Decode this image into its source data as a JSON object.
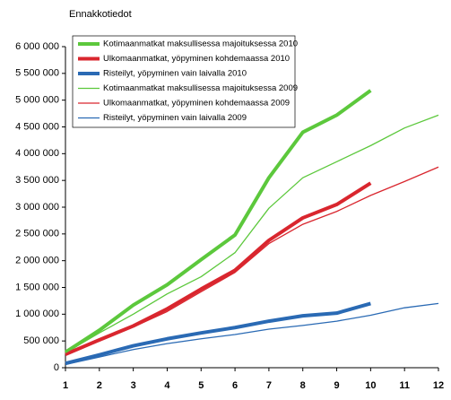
{
  "chart_data": {
    "type": "line",
    "y_label": "Ennakkotiedot",
    "x": [
      1,
      2,
      3,
      4,
      5,
      6,
      7,
      8,
      9,
      10,
      11,
      12
    ],
    "xlim": [
      1,
      12
    ],
    "xticks": [
      1,
      2,
      3,
      4,
      5,
      6,
      7,
      8,
      9,
      10,
      11,
      12
    ],
    "ylim": [
      0,
      6000000
    ],
    "yticks": [
      0,
      {
        "value": 500000,
        "label": "500 000"
      },
      {
        "value": 1000000,
        "label": "1 000 000"
      },
      {
        "value": 1500000,
        "label": "1 500 000"
      },
      {
        "value": 2000000,
        "label": "2 000 000"
      },
      {
        "value": 2500000,
        "label": "2 500 000"
      },
      {
        "value": 3000000,
        "label": "3 000 000"
      },
      {
        "value": 3500000,
        "label": "3 500 000"
      },
      {
        "value": 4000000,
        "label": "4 000 000"
      },
      {
        "value": 4500000,
        "label": "4 500 000"
      },
      {
        "value": 5000000,
        "label": "5 000 000"
      },
      {
        "value": 5500000,
        "label": "5 500 000"
      },
      {
        "value": 6000000,
        "label": "6 000 000"
      }
    ],
    "grid": false,
    "legend": "upper left",
    "series": [
      {
        "name": "Kotimaanmatkat maksullisessa majoituksessa 2010",
        "color": "#5cc83c",
        "line_width": 4,
        "values": [
          290000,
          700000,
          1170000,
          1550000,
          2020000,
          2480000,
          3550000,
          4400000,
          4720000,
          5180000,
          null,
          null
        ]
      },
      {
        "name": "Ulkomaanmatkat, yöpyminen kohdemaassa 2010",
        "color": "#d9262e",
        "line_width": 4,
        "values": [
          250000,
          520000,
          780000,
          1100000,
          1470000,
          1820000,
          2380000,
          2800000,
          3050000,
          3450000,
          null,
          null
        ]
      },
      {
        "name": "Risteilyt, yöpyminen vain laivalla 2010",
        "color": "#2a6ab4",
        "line_width": 4,
        "values": [
          80000,
          240000,
          410000,
          540000,
          650000,
          750000,
          870000,
          970000,
          1020000,
          1200000,
          null,
          null
        ]
      },
      {
        "name": "Kotimaanmatkat maksullisessa majoituksessa 2009",
        "color": "#5cc83c",
        "line_width": 1.3,
        "values": [
          280000,
          650000,
          1000000,
          1380000,
          1700000,
          2150000,
          2980000,
          3550000,
          3850000,
          4150000,
          4480000,
          4720000
        ]
      },
      {
        "name": "Ulkomaanmatkat, yöpyminen kohdemaassa 2009",
        "color": "#d9262e",
        "line_width": 1.3,
        "values": [
          230000,
          500000,
          760000,
          1050000,
          1420000,
          1780000,
          2320000,
          2680000,
          2920000,
          3220000,
          3480000,
          3750000
        ]
      },
      {
        "name": "Risteilyt, yöpyminen vain laivalla 2009",
        "color": "#2a6ab4",
        "line_width": 1.3,
        "values": [
          60000,
          200000,
          340000,
          450000,
          540000,
          620000,
          720000,
          790000,
          870000,
          980000,
          1120000,
          1200000
        ]
      }
    ]
  }
}
